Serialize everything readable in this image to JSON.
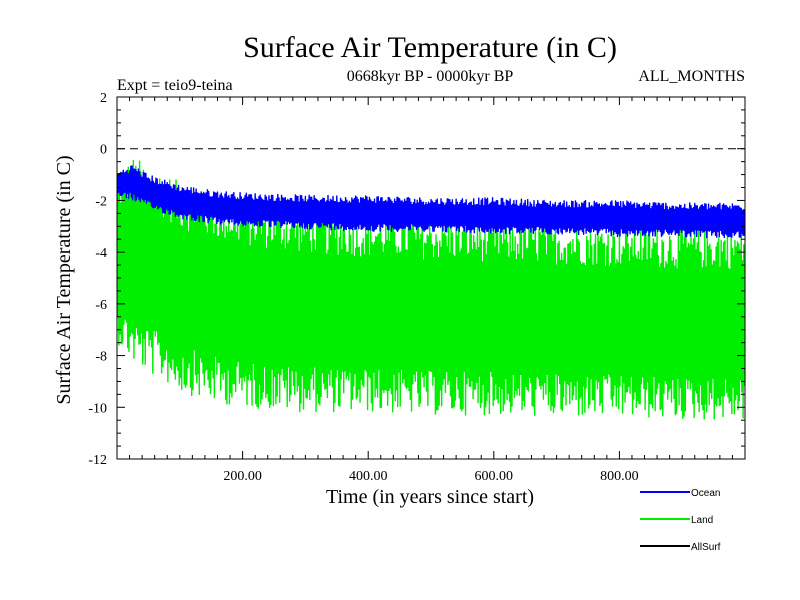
{
  "chart_data": {
    "type": "line",
    "title": "Surface Air Temperature (in C)",
    "subtitle_left": "Expt = teio9-teina",
    "subtitle_center": "0668kyr BP - 0000kyr BP",
    "subtitle_right": "ALL_MONTHS",
    "xlabel": "Time (in years since start)",
    "ylabel": "Surface Air Temperature (in C)",
    "xlim": [
      0,
      1000
    ],
    "ylim": [
      -12,
      2
    ],
    "x_ticks": [
      200,
      400,
      600,
      800
    ],
    "x_tick_labels": [
      "200.00",
      "400.00",
      "600.00",
      "800.00"
    ],
    "y_ticks": [
      2,
      0,
      -2,
      -4,
      -6,
      -8,
      -10,
      -12
    ],
    "y_tick_labels": [
      "2",
      "0",
      "-2",
      "-4",
      "-6",
      "-8",
      "-10",
      "-12"
    ],
    "reference_line": 0,
    "series": [
      {
        "name": "Land",
        "color": "#00ee00",
        "x": [
          0,
          25,
          50,
          75,
          100,
          150,
          200,
          300,
          400,
          500,
          600,
          700,
          800,
          900,
          1000
        ],
        "upper": [
          -1.0,
          -0.3,
          -0.6,
          -0.9,
          -1.3,
          -1.7,
          -2.0,
          -2.3,
          -2.5,
          -2.6,
          -2.7,
          -2.8,
          -2.9,
          -3.0,
          -3.0
        ],
        "lower": [
          -7.5,
          -8.3,
          -8.7,
          -9.0,
          -9.4,
          -9.8,
          -10.0,
          -10.2,
          -10.2,
          -10.3,
          -10.3,
          -10.4,
          -10.4,
          -10.5,
          -10.5
        ]
      },
      {
        "name": "Ocean",
        "color": "#0000ff",
        "x": [
          0,
          25,
          50,
          75,
          100,
          150,
          200,
          300,
          400,
          500,
          600,
          700,
          800,
          900,
          1000
        ],
        "upper": [
          -0.9,
          -0.6,
          -1.0,
          -1.2,
          -1.4,
          -1.6,
          -1.7,
          -1.8,
          -1.8,
          -1.9,
          -1.9,
          -2.0,
          -2.0,
          -2.1,
          -2.1
        ],
        "lower": [
          -1.8,
          -2.0,
          -2.3,
          -2.5,
          -2.7,
          -2.9,
          -3.0,
          -3.1,
          -3.2,
          -3.2,
          -3.3,
          -3.3,
          -3.4,
          -3.4,
          -3.5
        ]
      },
      {
        "name": "AllSurf",
        "color": "#000000",
        "x": [],
        "upper": [],
        "lower": []
      }
    ],
    "legend": [
      {
        "label": "Ocean",
        "color": "#0000ff"
      },
      {
        "label": "Land",
        "color": "#00ee00"
      },
      {
        "label": "AllSurf",
        "color": "#000000"
      }
    ]
  }
}
